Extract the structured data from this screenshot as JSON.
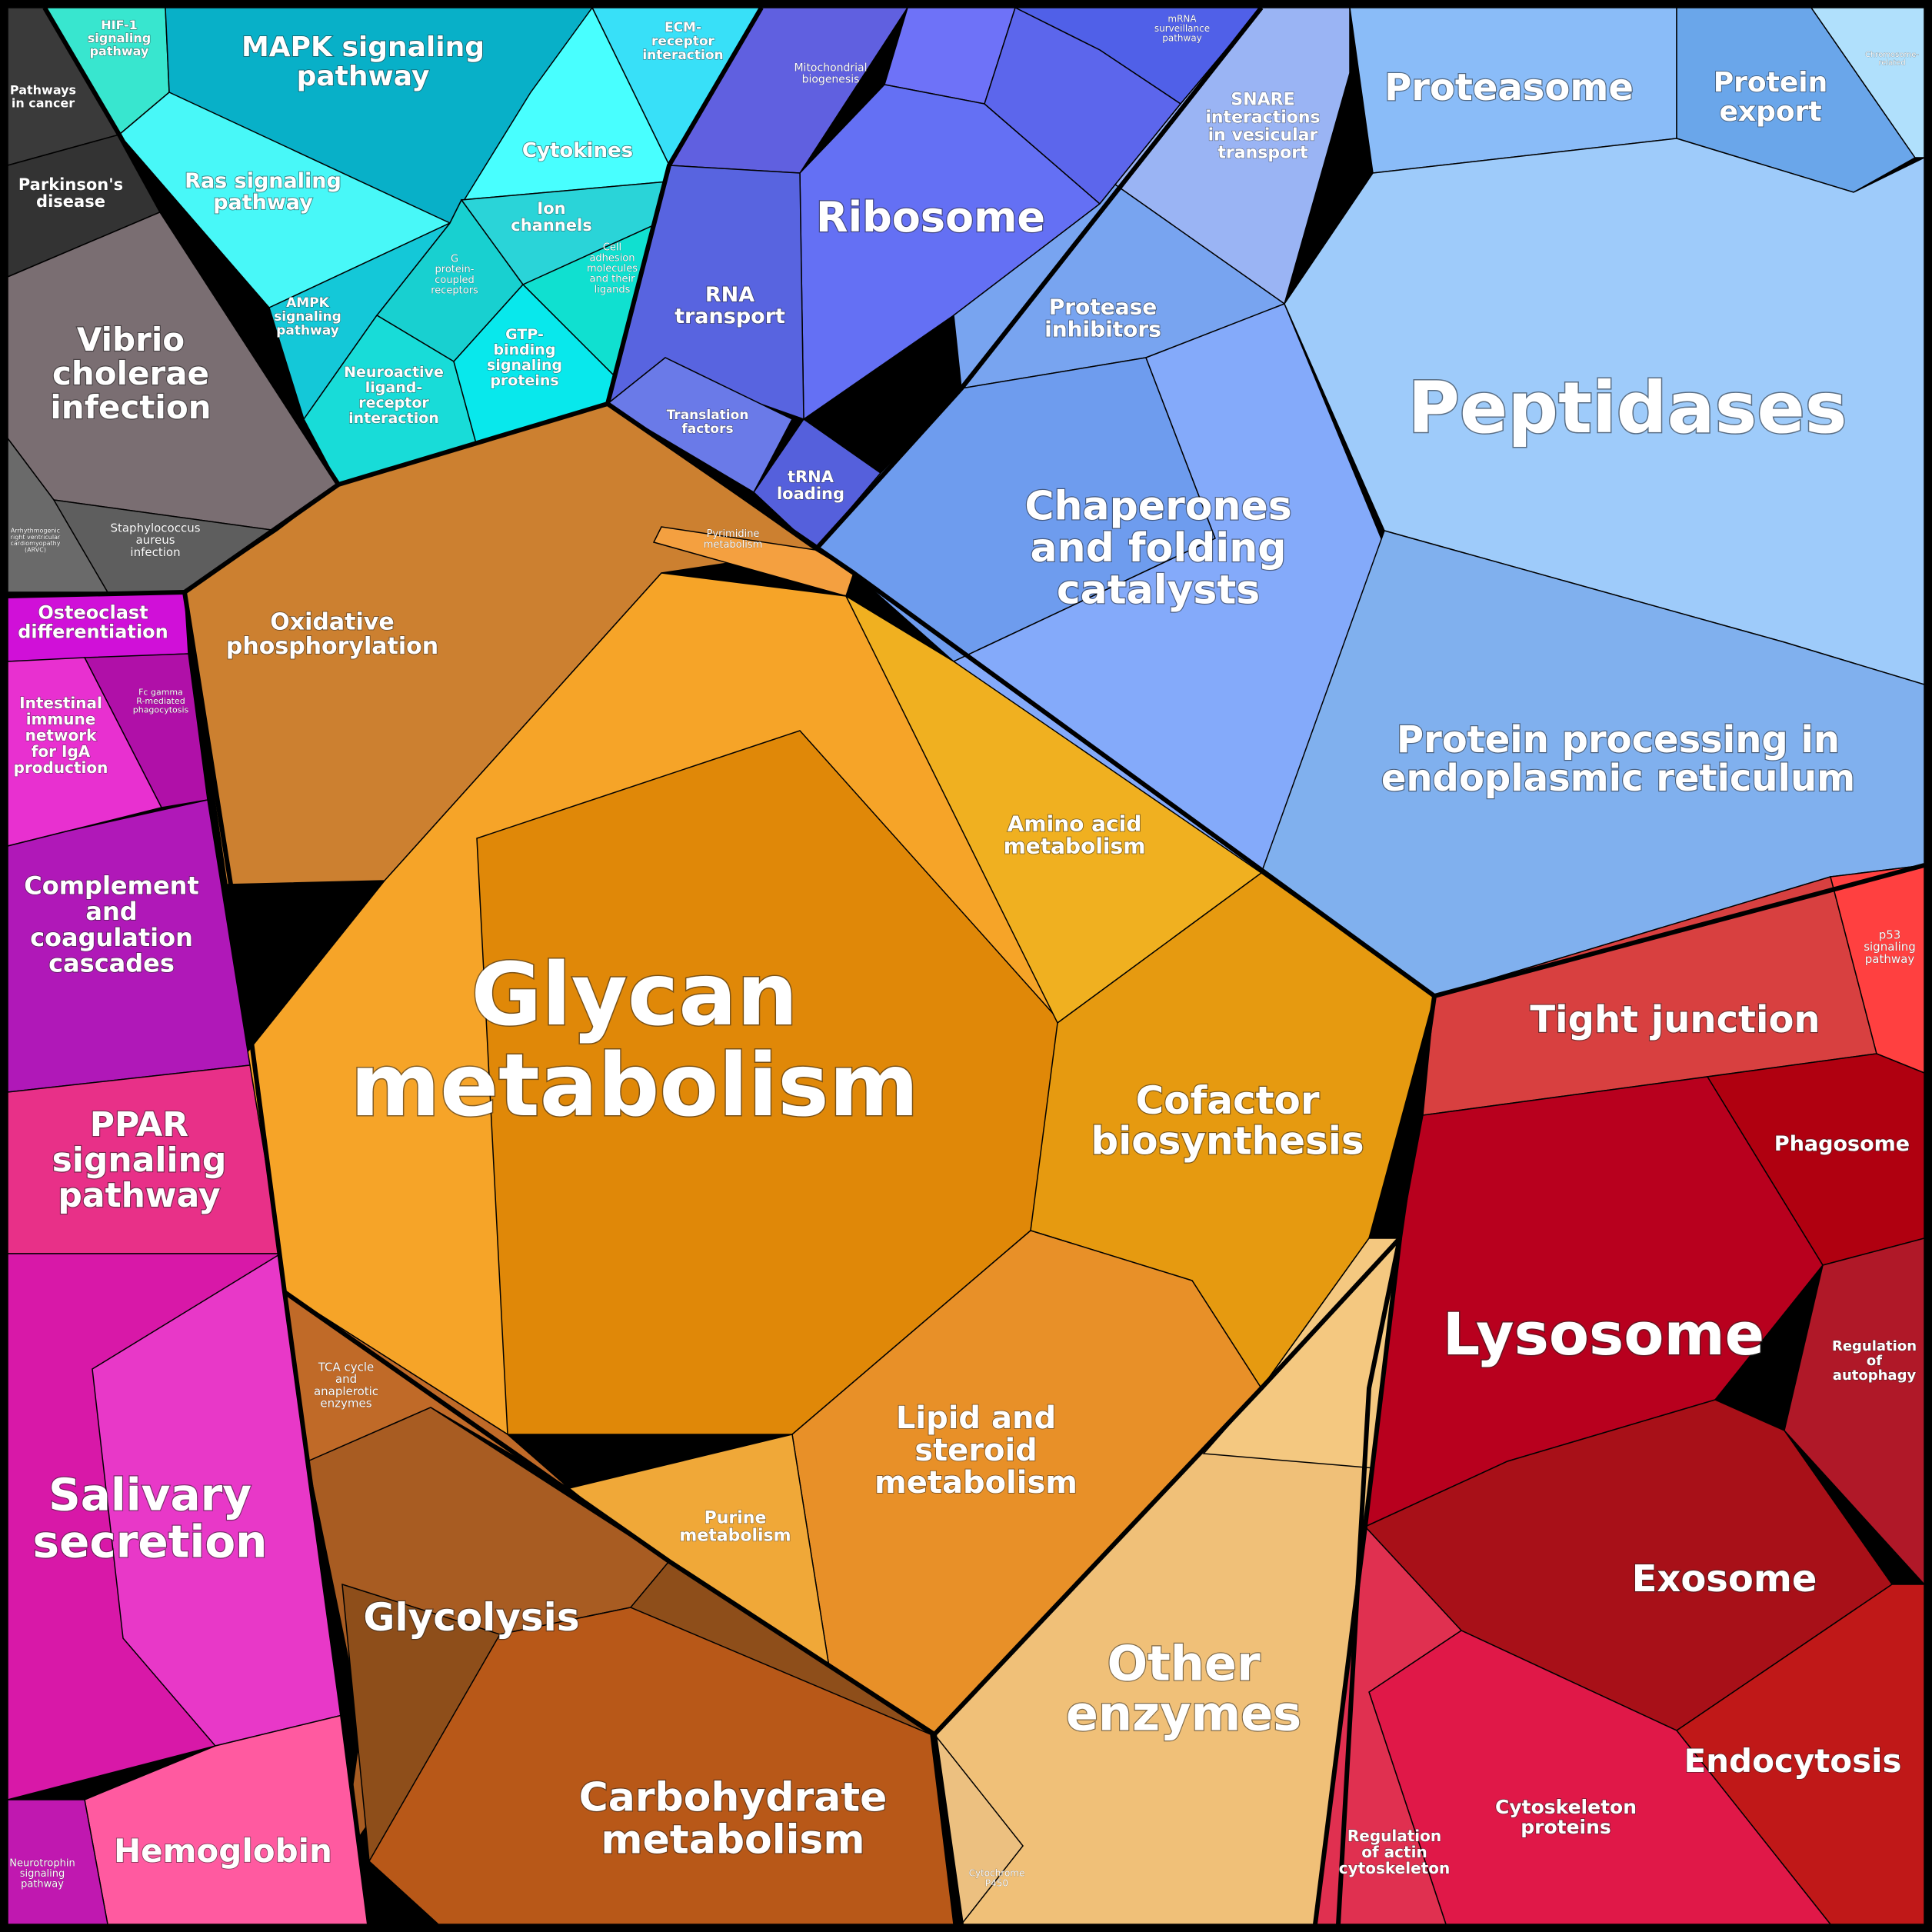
{
  "labels": {
    "hif1": [
      "HIF-1",
      "signaling",
      "pathway"
    ],
    "mapk": [
      "MAPK signaling",
      "pathway"
    ],
    "ecm": [
      "ECM-",
      "receptor",
      "interaction"
    ],
    "pathways_cancer": [
      "Pathways",
      "in cancer"
    ],
    "parkinsons": [
      "Parkinson's",
      "disease"
    ],
    "ras": [
      "Ras signaling",
      "pathway"
    ],
    "cytokines": [
      "Cytokines"
    ],
    "ion_channels": [
      "Ion",
      "channels"
    ],
    "gpcr": [
      "G",
      "protein-",
      "coupled",
      "receptors"
    ],
    "cell_adhesion": [
      "Cell",
      "adhesion",
      "molecules",
      "and their",
      "ligands"
    ],
    "ampk": [
      "AMPK",
      "signaling",
      "pathway"
    ],
    "neuroactive": [
      "Neuroactive",
      "ligand-",
      "receptor",
      "interaction"
    ],
    "gtp": [
      "GTP-",
      "binding",
      "signaling",
      "proteins"
    ],
    "vibrio": [
      "Vibrio",
      "cholerae",
      "infection"
    ],
    "arvc": [
      "Arrhythmogenic",
      "right ventricular",
      "cardiomyopathy",
      "(ARVC)"
    ],
    "staph": [
      "Staphylococcus",
      "aureus",
      "infection"
    ],
    "mito_bio": [
      "Mitochondrial",
      "biogenesis"
    ],
    "mrna_surv": [
      "mRNA",
      "surveillance",
      "pathway"
    ],
    "ribosome": [
      "Ribosome"
    ],
    "rna_transport": [
      "RNA",
      "transport"
    ],
    "translation": [
      "Translation",
      "factors"
    ],
    "trna": [
      "tRNA",
      "loading"
    ],
    "snare": [
      "SNARE",
      "interactions",
      "in vesicular",
      "transport"
    ],
    "proteasome": [
      "Proteasome"
    ],
    "protein_export": [
      "Protein",
      "export"
    ],
    "chromosome": [
      "Chromosome-",
      "related"
    ],
    "protease_inh": [
      "Protease",
      "inhibitors"
    ],
    "peptidases": [
      "Peptidases"
    ],
    "chaperones": [
      "Chaperones",
      "and folding",
      "catalysts"
    ],
    "protein_proc": [
      "Protein processing in",
      "endoplasmic reticulum"
    ],
    "oxphos": [
      "Oxidative",
      "phosphorylation"
    ],
    "pyrimidine": [
      "Pyrimidine",
      "metabolism"
    ],
    "glycan": [
      "Glycan",
      "metabolism"
    ],
    "amino_acid": [
      "Amino acid",
      "metabolism"
    ],
    "cofactor": [
      "Cofactor",
      "biosynthesis"
    ],
    "lipid": [
      "Lipid and",
      "steroid",
      "metabolism"
    ],
    "purine": [
      "Purine",
      "metabolism"
    ],
    "tca": [
      "TCA cycle",
      "and",
      "anaplerotic",
      "enzymes"
    ],
    "glycolysis": [
      "Glycolysis"
    ],
    "carbohydrate": [
      "Carbohydrate",
      "metabolism"
    ],
    "other_enzymes": [
      "Other",
      "enzymes"
    ],
    "cytochrome": [
      "Cytochrome",
      "P450"
    ],
    "osteoclast": [
      "Osteoclast",
      "differentiation"
    ],
    "fc_gamma": [
      "Fc gamma",
      "R-mediated",
      "phagocytosis"
    ],
    "intestinal": [
      "Intestinal",
      "immune",
      "network",
      "for IgA",
      "production"
    ],
    "complement": [
      "Complement",
      "and",
      "coagulation",
      "cascades"
    ],
    "ppar": [
      "PPAR",
      "signaling",
      "pathway"
    ],
    "salivary": [
      "Salivary",
      "secretion"
    ],
    "hemoglobin": [
      "Hemoglobin"
    ],
    "neurotrophin": [
      "Neurotrophin",
      "signaling",
      "pathway"
    ],
    "tight_junction": [
      "Tight junction"
    ],
    "p53": [
      "p53",
      "signaling",
      "pathway"
    ],
    "phagosome": [
      "Phagosome"
    ],
    "lysosome": [
      "Lysosome"
    ],
    "autophagy": [
      "Regulation",
      "of",
      "autophagy"
    ],
    "exosome": [
      "Exosome"
    ],
    "endocytosis": [
      "Endocytosis"
    ],
    "cytoskeleton": [
      "Cytoskeleton",
      "proteins"
    ],
    "actin": [
      "Regulation",
      "of actin",
      "cytoskeleton"
    ]
  },
  "colors": {
    "cyan": "#2fe0e0",
    "blue": "#6a78f0",
    "light_blue": "#8ab8f8",
    "orange": "#f0a030",
    "brown": "#b86a28",
    "magenta": "#d020b0",
    "red": "#c8102e",
    "dark": "#444444"
  }
}
